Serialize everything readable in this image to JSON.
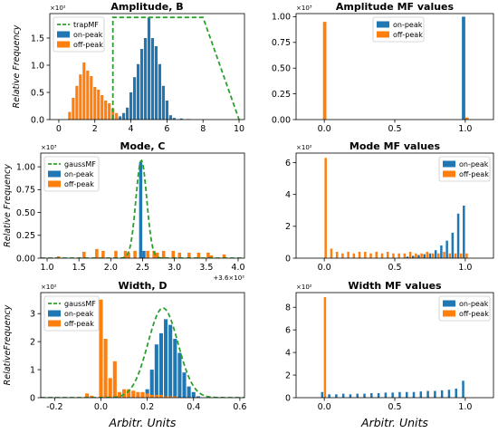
{
  "colors": {
    "on": "#1f77b4",
    "off": "#ff7f0e",
    "mf": "#2ca02c"
  },
  "chart_data": [
    {
      "type": "bar",
      "title": "Amplitude, B",
      "ylabel": "Relative Frequency",
      "xlabel": "",
      "xlim": [
        -0.5,
        10.3
      ],
      "ylim": [
        0,
        1.95
      ],
      "y_multiplier": "×10²",
      "xticks": [
        0,
        2,
        4,
        6,
        8,
        10
      ],
      "yticks": [
        0.0,
        0.5,
        1.0,
        1.5
      ],
      "legend": [
        "trapMF",
        "on-peak",
        "off-peak"
      ],
      "legend_position": "upper-left",
      "bar_width": 0.16,
      "grid": false,
      "series": [
        {
          "name": "on-peak",
          "x": [
            3.0,
            3.2,
            3.4,
            3.6,
            3.8,
            4.0,
            4.2,
            4.4,
            4.6,
            4.8,
            5.0,
            5.2,
            5.4,
            5.6,
            5.8,
            6.0,
            6.2,
            6.4,
            6.8,
            7.2
          ],
          "values": [
            0.02,
            0.03,
            0.06,
            0.12,
            0.22,
            0.5,
            0.78,
            1.02,
            1.3,
            1.5,
            1.88,
            1.5,
            1.35,
            1.02,
            0.62,
            0.35,
            0.08,
            0.03,
            0.02,
            0.01
          ]
        },
        {
          "name": "off-peak",
          "x": [
            0.6,
            0.8,
            1.0,
            1.2,
            1.4,
            1.6,
            1.8,
            2.0,
            2.2,
            2.4,
            2.6,
            2.8,
            3.0,
            3.2
          ],
          "values": [
            0.14,
            0.4,
            0.62,
            0.83,
            1.05,
            0.9,
            0.8,
            0.6,
            0.55,
            0.45,
            0.35,
            0.3,
            0.2,
            0.12
          ]
        },
        {
          "name": "trapMF",
          "kind": "line",
          "x": [
            3.0,
            3.0,
            8.0,
            10.0
          ],
          "values": [
            0.0,
            1.88,
            1.88,
            0.0
          ]
        }
      ]
    },
    {
      "type": "bar",
      "title": "Amplitude MF values",
      "ylabel": "",
      "xlabel": "",
      "xlim": [
        -0.2,
        1.2
      ],
      "ylim": [
        0,
        1.03
      ],
      "y_multiplier": "×10³",
      "xticks": [
        0.0,
        0.5,
        1.0
      ],
      "yticks": [
        0.0,
        0.25,
        0.5,
        0.75,
        1.0
      ],
      "legend": [
        "on-peak",
        "off-peak"
      ],
      "legend_position": "upper-center",
      "bar_width": 0.024,
      "grid": false,
      "series": [
        {
          "name": "on-peak",
          "x": [
            0.988
          ],
          "values": [
            1.0
          ]
        },
        {
          "name": "off-peak",
          "x": [
            0.003,
            1.012
          ],
          "values": [
            0.95,
            0.02
          ]
        }
      ]
    },
    {
      "type": "bar",
      "title": "Mode, C",
      "ylabel": "Relative Frequency",
      "xlabel": "",
      "xlim": [
        0.9,
        4.1
      ],
      "ylim": [
        0,
        1.15
      ],
      "y_multiplier": "×10³",
      "x_offset": "+3.6×10²",
      "xticks": [
        1.0,
        1.5,
        2.0,
        2.5,
        3.0,
        3.5,
        4.0
      ],
      "yticks": [
        0.0,
        0.25,
        0.5,
        0.75,
        1.0
      ],
      "legend": [
        "gaussMF",
        "on-peak",
        "off-peak"
      ],
      "legend_position": "upper-left",
      "bar_width": 0.05,
      "grid": false,
      "series": [
        {
          "name": "on-peak",
          "x": [
            2.47,
            2.52
          ],
          "values": [
            1.05,
            0.08
          ]
        },
        {
          "name": "off-peak",
          "x": [
            1.18,
            1.58,
            1.78,
            1.88,
            2.08,
            2.23,
            2.28,
            2.38,
            2.58,
            2.68,
            2.73,
            2.83,
            2.98,
            3.08,
            3.23,
            3.38,
            3.53,
            3.58,
            3.78
          ],
          "values": [
            0.02,
            0.07,
            0.1,
            0.08,
            0.08,
            0.08,
            0.06,
            0.08,
            0.08,
            0.08,
            0.06,
            0.08,
            0.08,
            0.06,
            0.06,
            0.06,
            0.06,
            0.03,
            0.04
          ]
        },
        {
          "name": "gaussMF",
          "kind": "line",
          "center": 2.48,
          "sigma": 0.085,
          "peak": 1.07
        }
      ]
    },
    {
      "type": "bar",
      "title": "Mode MF values",
      "ylabel": "",
      "xlabel": "",
      "xlim": [
        -0.2,
        1.2
      ],
      "ylim": [
        0,
        6.6
      ],
      "y_multiplier": "×10²",
      "xticks": [
        0.0,
        0.5,
        1.0
      ],
      "yticks": [
        0,
        2,
        4,
        6
      ],
      "legend": [
        "on-peak",
        "off-peak"
      ],
      "legend_position": "upper-right",
      "bar_width": 0.016,
      "grid": false,
      "series": [
        {
          "name": "on-peak",
          "x": [
            0.59,
            0.63,
            0.67,
            0.71,
            0.75,
            0.79,
            0.83,
            0.87,
            0.91,
            0.95,
            0.99
          ],
          "values": [
            0.1,
            0.15,
            0.2,
            0.25,
            0.3,
            0.5,
            0.8,
            1.1,
            1.6,
            2.8,
            3.3
          ]
        },
        {
          "name": "off-peak",
          "x": [
            0.01,
            0.05,
            0.09,
            0.13,
            0.17,
            0.21,
            0.25,
            0.29,
            0.33,
            0.37,
            0.41,
            0.45,
            0.49,
            0.53,
            0.57,
            0.61,
            0.65,
            0.69,
            0.73,
            0.77,
            0.81,
            0.85,
            0.89,
            0.93,
            0.97,
            1.01
          ],
          "values": [
            6.3,
            0.6,
            0.4,
            0.3,
            0.4,
            0.3,
            0.4,
            0.4,
            0.3,
            0.4,
            0.3,
            0.4,
            0.3,
            0.3,
            0.3,
            0.4,
            0.3,
            0.3,
            0.4,
            0.3,
            0.3,
            0.4,
            0.3,
            0.3,
            0.3,
            0.3
          ]
        }
      ]
    },
    {
      "type": "bar",
      "title": "Width, D",
      "ylabel": "RelativeFrequency",
      "xlabel": "Arbitr. Units",
      "xlim": [
        -0.26,
        0.62
      ],
      "ylim": [
        0,
        3.75
      ],
      "y_multiplier": "×10²",
      "xticks": [
        -0.2,
        0.0,
        0.2,
        0.4,
        0.6
      ],
      "yticks": [
        0,
        1,
        2,
        3
      ],
      "legend": [
        "gaussMF",
        "on-peak",
        "off-peak"
      ],
      "legend_position": "upper-left",
      "bar_width": 0.016,
      "grid": false,
      "series": [
        {
          "name": "on-peak",
          "x": [
            0.18,
            0.2,
            0.22,
            0.24,
            0.26,
            0.28,
            0.3,
            0.32,
            0.34,
            0.36,
            0.38,
            0.4,
            0.42
          ],
          "values": [
            0.1,
            0.3,
            1.0,
            1.9,
            2.3,
            2.8,
            2.6,
            2.1,
            1.6,
            0.9,
            0.4,
            0.2,
            0.05
          ]
        },
        {
          "name": "off-peak",
          "x": [
            -0.06,
            -0.04,
            0.0,
            0.02,
            0.04,
            0.06,
            0.08,
            0.1,
            0.12,
            0.14,
            0.16,
            0.18,
            0.2,
            0.22,
            0.24,
            0.26,
            0.28,
            0.3,
            0.32
          ],
          "values": [
            0.15,
            0.07,
            3.5,
            2.1,
            0.7,
            1.3,
            0.2,
            0.3,
            0.3,
            0.25,
            0.2,
            0.2,
            0.15,
            0.1,
            0.1,
            0.1,
            0.05,
            0.05,
            0.05
          ]
        },
        {
          "name": "gaussMF",
          "kind": "line",
          "center": 0.268,
          "sigma": 0.065,
          "peak": 3.2
        }
      ]
    },
    {
      "type": "bar",
      "title": "Width MF values",
      "ylabel": "",
      "xlabel": "Arbitr. Units",
      "xlim": [
        -0.2,
        1.2
      ],
      "ylim": [
        0,
        9.3
      ],
      "y_multiplier": "×10²",
      "xticks": [
        0.0,
        0.5,
        1.0
      ],
      "yticks": [
        0,
        2,
        4,
        6,
        8
      ],
      "legend": [
        "on-peak",
        "off-peak"
      ],
      "legend_position": "upper-right",
      "bar_width": 0.016,
      "grid": false,
      "series": [
        {
          "name": "on-peak",
          "x": [
            -0.015,
            0.035,
            0.085,
            0.135,
            0.185,
            0.235,
            0.285,
            0.335,
            0.385,
            0.435,
            0.485,
            0.535,
            0.585,
            0.635,
            0.685,
            0.735,
            0.785,
            0.835,
            0.885,
            0.935,
            0.985
          ],
          "values": [
            0.5,
            0.3,
            0.3,
            0.35,
            0.3,
            0.35,
            0.35,
            0.4,
            0.4,
            0.45,
            0.45,
            0.5,
            0.5,
            0.5,
            0.55,
            0.6,
            0.6,
            0.65,
            0.7,
            0.8,
            1.5
          ]
        },
        {
          "name": "off-peak",
          "x": [
            0.005
          ],
          "values": [
            8.9
          ]
        }
      ]
    }
  ]
}
